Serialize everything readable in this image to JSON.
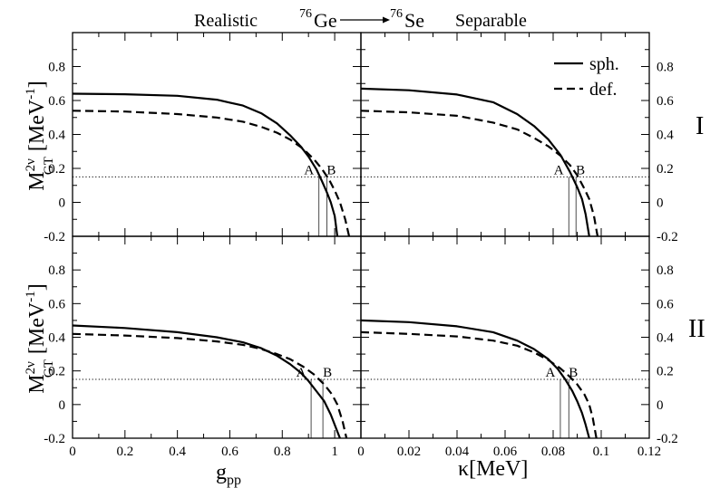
{
  "header": {
    "left_label": "Realistic",
    "right_label": "Separable",
    "from_mass": "76",
    "from_element": "Ge",
    "to_mass": "76",
    "to_element": "Se"
  },
  "rows": [
    {
      "label": "I"
    },
    {
      "label": "II"
    }
  ],
  "y_axis": {
    "main": "M",
    "sup": "2ν",
    "sub": "GT",
    "unit_open": " [MeV",
    "unit_exp": "-1",
    "unit_close": "]"
  },
  "x_axes": {
    "left": {
      "main": "g",
      "sub": "pp"
    },
    "right": {
      "main": "κ",
      "unit": "[MeV]"
    }
  },
  "legend": [
    {
      "label": "sph.",
      "style": "solid"
    },
    {
      "label": "def.",
      "style": "dashed"
    }
  ],
  "marker_labels": {
    "a": "A",
    "b": "B"
  },
  "chart_data": [
    {
      "type": "line",
      "panel": "I-realistic",
      "title": "Realistic",
      "xlabel": "g_pp",
      "ylabel": "M^{2ν}_GT [MeV^-1]",
      "xlim": [
        0,
        1.1
      ],
      "ylim": [
        -0.2,
        1.0
      ],
      "xticks": [
        0,
        0.2,
        0.4,
        0.6,
        0.8,
        1
      ],
      "yticks": [
        -0.2,
        0,
        0.2,
        0.4,
        0.6,
        0.8
      ],
      "hline": 0.15,
      "markers": [
        {
          "label": "A",
          "x": 0.94
        },
        {
          "label": "B",
          "x": 0.97
        }
      ],
      "series": [
        {
          "name": "sph.",
          "style": "solid",
          "x": [
            0,
            0.2,
            0.4,
            0.55,
            0.65,
            0.72,
            0.78,
            0.83,
            0.87,
            0.9,
            0.93,
            0.95,
            0.97,
            0.985,
            1.0,
            1.01
          ],
          "y": [
            0.64,
            0.637,
            0.628,
            0.605,
            0.57,
            0.525,
            0.465,
            0.395,
            0.33,
            0.27,
            0.195,
            0.13,
            0.06,
            0.0,
            -0.08,
            -0.2
          ]
        },
        {
          "name": "def.",
          "style": "dashed",
          "x": [
            0,
            0.2,
            0.4,
            0.55,
            0.65,
            0.72,
            0.78,
            0.83,
            0.88,
            0.92,
            0.95,
            0.98,
            1.0,
            1.02,
            1.04,
            1.055
          ],
          "y": [
            0.54,
            0.535,
            0.52,
            0.5,
            0.475,
            0.445,
            0.41,
            0.37,
            0.315,
            0.255,
            0.2,
            0.13,
            0.07,
            0.0,
            -0.1,
            -0.2
          ]
        }
      ]
    },
    {
      "type": "line",
      "panel": "I-separable",
      "title": "Separable",
      "xlabel": "κ[MeV]",
      "ylabel": "M^{2ν}_GT [MeV^-1]",
      "xlim": [
        0,
        0.12
      ],
      "ylim": [
        -0.2,
        1.0
      ],
      "xticks": [
        0,
        0.02,
        0.04,
        0.06,
        0.08,
        0.1,
        0.12
      ],
      "yticks": [
        -0.2,
        0,
        0.2,
        0.4,
        0.6,
        0.8
      ],
      "hline": 0.15,
      "markers": [
        {
          "label": "A",
          "x": 0.0865
        },
        {
          "label": "B",
          "x": 0.0895
        }
      ],
      "series": [
        {
          "name": "sph.",
          "style": "solid",
          "x": [
            0,
            0.02,
            0.04,
            0.055,
            0.065,
            0.072,
            0.078,
            0.083,
            0.087,
            0.09,
            0.092,
            0.0935,
            0.095
          ],
          "y": [
            0.67,
            0.66,
            0.635,
            0.59,
            0.52,
            0.45,
            0.37,
            0.28,
            0.18,
            0.09,
            0.02,
            -0.07,
            -0.2
          ]
        },
        {
          "name": "def.",
          "style": "dashed",
          "x": [
            0,
            0.02,
            0.04,
            0.055,
            0.065,
            0.072,
            0.078,
            0.083,
            0.087,
            0.09,
            0.093,
            0.095,
            0.097,
            0.0985
          ],
          "y": [
            0.54,
            0.53,
            0.51,
            0.47,
            0.43,
            0.38,
            0.33,
            0.275,
            0.22,
            0.16,
            0.08,
            0.02,
            -0.08,
            -0.2
          ]
        }
      ]
    },
    {
      "type": "line",
      "panel": "II-realistic",
      "title": "Realistic",
      "xlabel": "g_pp",
      "ylabel": "M^{2ν}_GT [MeV^-1]",
      "xlim": [
        0,
        1.1
      ],
      "ylim": [
        -0.2,
        1.0
      ],
      "xticks": [
        0,
        0.2,
        0.4,
        0.6,
        0.8,
        1
      ],
      "yticks": [
        -0.2,
        0,
        0.2,
        0.4,
        0.6,
        0.8
      ],
      "hline": 0.15,
      "markers": [
        {
          "label": "A",
          "x": 0.91
        },
        {
          "label": "B",
          "x": 0.955
        }
      ],
      "series": [
        {
          "name": "sph.",
          "style": "solid",
          "x": [
            0,
            0.2,
            0.4,
            0.55,
            0.65,
            0.72,
            0.78,
            0.83,
            0.87,
            0.9,
            0.93,
            0.96,
            0.985,
            1.0,
            1.02
          ],
          "y": [
            0.47,
            0.455,
            0.43,
            0.4,
            0.37,
            0.335,
            0.29,
            0.24,
            0.19,
            0.14,
            0.08,
            0.02,
            -0.06,
            -0.12,
            -0.2
          ]
        },
        {
          "name": "def.",
          "style": "dashed",
          "x": [
            0,
            0.2,
            0.4,
            0.55,
            0.65,
            0.72,
            0.78,
            0.83,
            0.88,
            0.92,
            0.96,
            0.99,
            1.01,
            1.03,
            1.045
          ],
          "y": [
            0.42,
            0.41,
            0.395,
            0.375,
            0.355,
            0.33,
            0.3,
            0.27,
            0.225,
            0.18,
            0.12,
            0.06,
            0.0,
            -0.1,
            -0.2
          ]
        }
      ]
    },
    {
      "type": "line",
      "panel": "II-separable",
      "title": "Separable",
      "xlabel": "κ[MeV]",
      "ylabel": "M^{2ν}_GT [MeV^-1]",
      "xlim": [
        0,
        0.12
      ],
      "ylim": [
        -0.2,
        1.0
      ],
      "xticks": [
        0,
        0.02,
        0.04,
        0.06,
        0.08,
        0.1,
        0.12
      ],
      "yticks": [
        -0.2,
        0,
        0.2,
        0.4,
        0.6,
        0.8
      ],
      "hline": 0.15,
      "markers": [
        {
          "label": "A",
          "x": 0.083
        },
        {
          "label": "B",
          "x": 0.0865
        }
      ],
      "series": [
        {
          "name": "sph.",
          "style": "solid",
          "x": [
            0,
            0.02,
            0.04,
            0.055,
            0.065,
            0.072,
            0.078,
            0.082,
            0.085,
            0.088,
            0.09,
            0.092,
            0.0935,
            0.095
          ],
          "y": [
            0.5,
            0.49,
            0.465,
            0.43,
            0.38,
            0.33,
            0.27,
            0.21,
            0.15,
            0.08,
            0.02,
            -0.05,
            -0.12,
            -0.2
          ]
        },
        {
          "name": "def.",
          "style": "dashed",
          "x": [
            0,
            0.02,
            0.04,
            0.055,
            0.065,
            0.072,
            0.078,
            0.083,
            0.087,
            0.09,
            0.093,
            0.095,
            0.0965,
            0.098
          ],
          "y": [
            0.43,
            0.42,
            0.405,
            0.38,
            0.35,
            0.31,
            0.265,
            0.215,
            0.165,
            0.12,
            0.06,
            0.0,
            -0.08,
            -0.2
          ]
        }
      ]
    }
  ]
}
